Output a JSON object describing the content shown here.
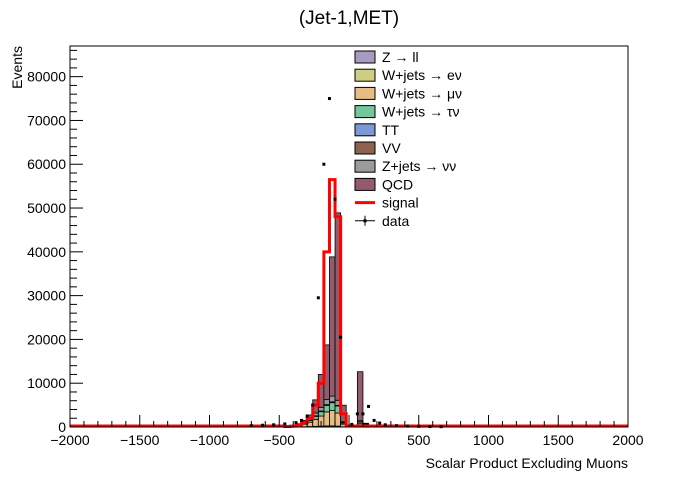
{
  "chart_data": {
    "type": "bar",
    "stacked": true,
    "title": "(Jet-1,MET)",
    "xlabel": "Scalar Product Excluding Muons",
    "ylabel": "Events",
    "xlim": [
      -2000,
      2000
    ],
    "ylim": [
      0,
      87000
    ],
    "xticks": [
      -2000,
      -1500,
      -1000,
      -500,
      0,
      500,
      1000,
      1500,
      2000
    ],
    "xtick_labels": [
      "−2000",
      "−1500",
      "−1000",
      "−500",
      "0",
      "500",
      "1000",
      "1500",
      "2000"
    ],
    "yticks": [
      0,
      10000,
      20000,
      30000,
      40000,
      50000,
      60000,
      70000,
      80000
    ],
    "ytick_labels": [
      "0",
      "10000",
      "20000",
      "30000",
      "40000",
      "50000",
      "60000",
      "70000",
      "80000"
    ],
    "bin_width": 40,
    "x": [
      -440,
      -400,
      -360,
      -320,
      -280,
      -240,
      -200,
      -160,
      -120,
      -80,
      -40,
      0,
      40,
      80,
      120,
      160,
      200
    ],
    "series": [
      {
        "name": "Z → ll",
        "color": "#a99bc0",
        "values": [
          0,
          0,
          0,
          0,
          0,
          0,
          0,
          0,
          0,
          0,
          0,
          0,
          0,
          0,
          0,
          0,
          0
        ]
      },
      {
        "name": "W+jets → eν",
        "color": "#cfcd84",
        "values": [
          0,
          0,
          0,
          50,
          100,
          150,
          200,
          250,
          250,
          200,
          50,
          0,
          0,
          50,
          30,
          0,
          0
        ]
      },
      {
        "name": "W+jets → μν",
        "color": "#e7bd86",
        "values": [
          50,
          150,
          300,
          600,
          1000,
          1600,
          2300,
          3200,
          3500,
          3000,
          600,
          50,
          50,
          700,
          400,
          100,
          50
        ]
      },
      {
        "name": "W+jets → τν",
        "color": "#74c79c",
        "values": [
          20,
          50,
          100,
          250,
          400,
          700,
          1000,
          1500,
          1800,
          1600,
          300,
          30,
          30,
          400,
          250,
          50,
          20
        ]
      },
      {
        "name": "TT",
        "color": "#7c98d5",
        "values": [
          0,
          0,
          0,
          0,
          50,
          50,
          100,
          100,
          150,
          100,
          30,
          0,
          0,
          30,
          20,
          0,
          0
        ]
      },
      {
        "name": "VV",
        "color": "#8e6150",
        "values": [
          0,
          0,
          0,
          0,
          0,
          50,
          50,
          50,
          50,
          50,
          0,
          0,
          0,
          0,
          0,
          0,
          0
        ]
      },
      {
        "name": "Z+jets → νν",
        "color": "#9b9b9b",
        "values": [
          20,
          50,
          100,
          200,
          400,
          650,
          850,
          1150,
          1300,
          1150,
          200,
          20,
          20,
          250,
          150,
          50,
          20
        ]
      },
      {
        "name": "QCD",
        "color": "#945b6c",
        "values": [
          0,
          50,
          200,
          400,
          800,
          3000,
          7500,
          12500,
          31800,
          42800,
          3800,
          0,
          0,
          11200,
          0,
          0,
          0
        ]
      }
    ],
    "signal": {
      "name": "signal",
      "color": "#ff0000",
      "x": [
        -440,
        -400,
        -360,
        -320,
        -280,
        -240,
        -200,
        -160,
        -120,
        -80,
        -40
      ],
      "values": [
        100,
        200,
        500,
        1000,
        2000,
        5000,
        10000,
        40000,
        56500,
        48000,
        3000
      ]
    },
    "data_points": {
      "name": "data",
      "x": [
        -700,
        -620,
        -540,
        -460,
        -380,
        -340,
        -300,
        -260,
        -220,
        -180,
        -140,
        -100,
        -60,
        20,
        60,
        100,
        140,
        180,
        220,
        260,
        340,
        420,
        500,
        580,
        660
      ],
      "y": [
        300,
        400,
        500,
        700,
        1000,
        1500,
        2500,
        5000,
        29500,
        60000,
        75000,
        52000,
        20500,
        600,
        3000,
        3000,
        4700,
        1500,
        900,
        500,
        300,
        200,
        150,
        100,
        80
      ]
    },
    "legend": {
      "placement": "top-right",
      "entries": [
        "Z → ll",
        "W+jets → eν",
        "W+jets → μν",
        "W+jets → τν",
        "TT",
        "VV",
        "Z+jets → νν",
        "QCD",
        "signal",
        "data"
      ]
    },
    "grid": false
  }
}
